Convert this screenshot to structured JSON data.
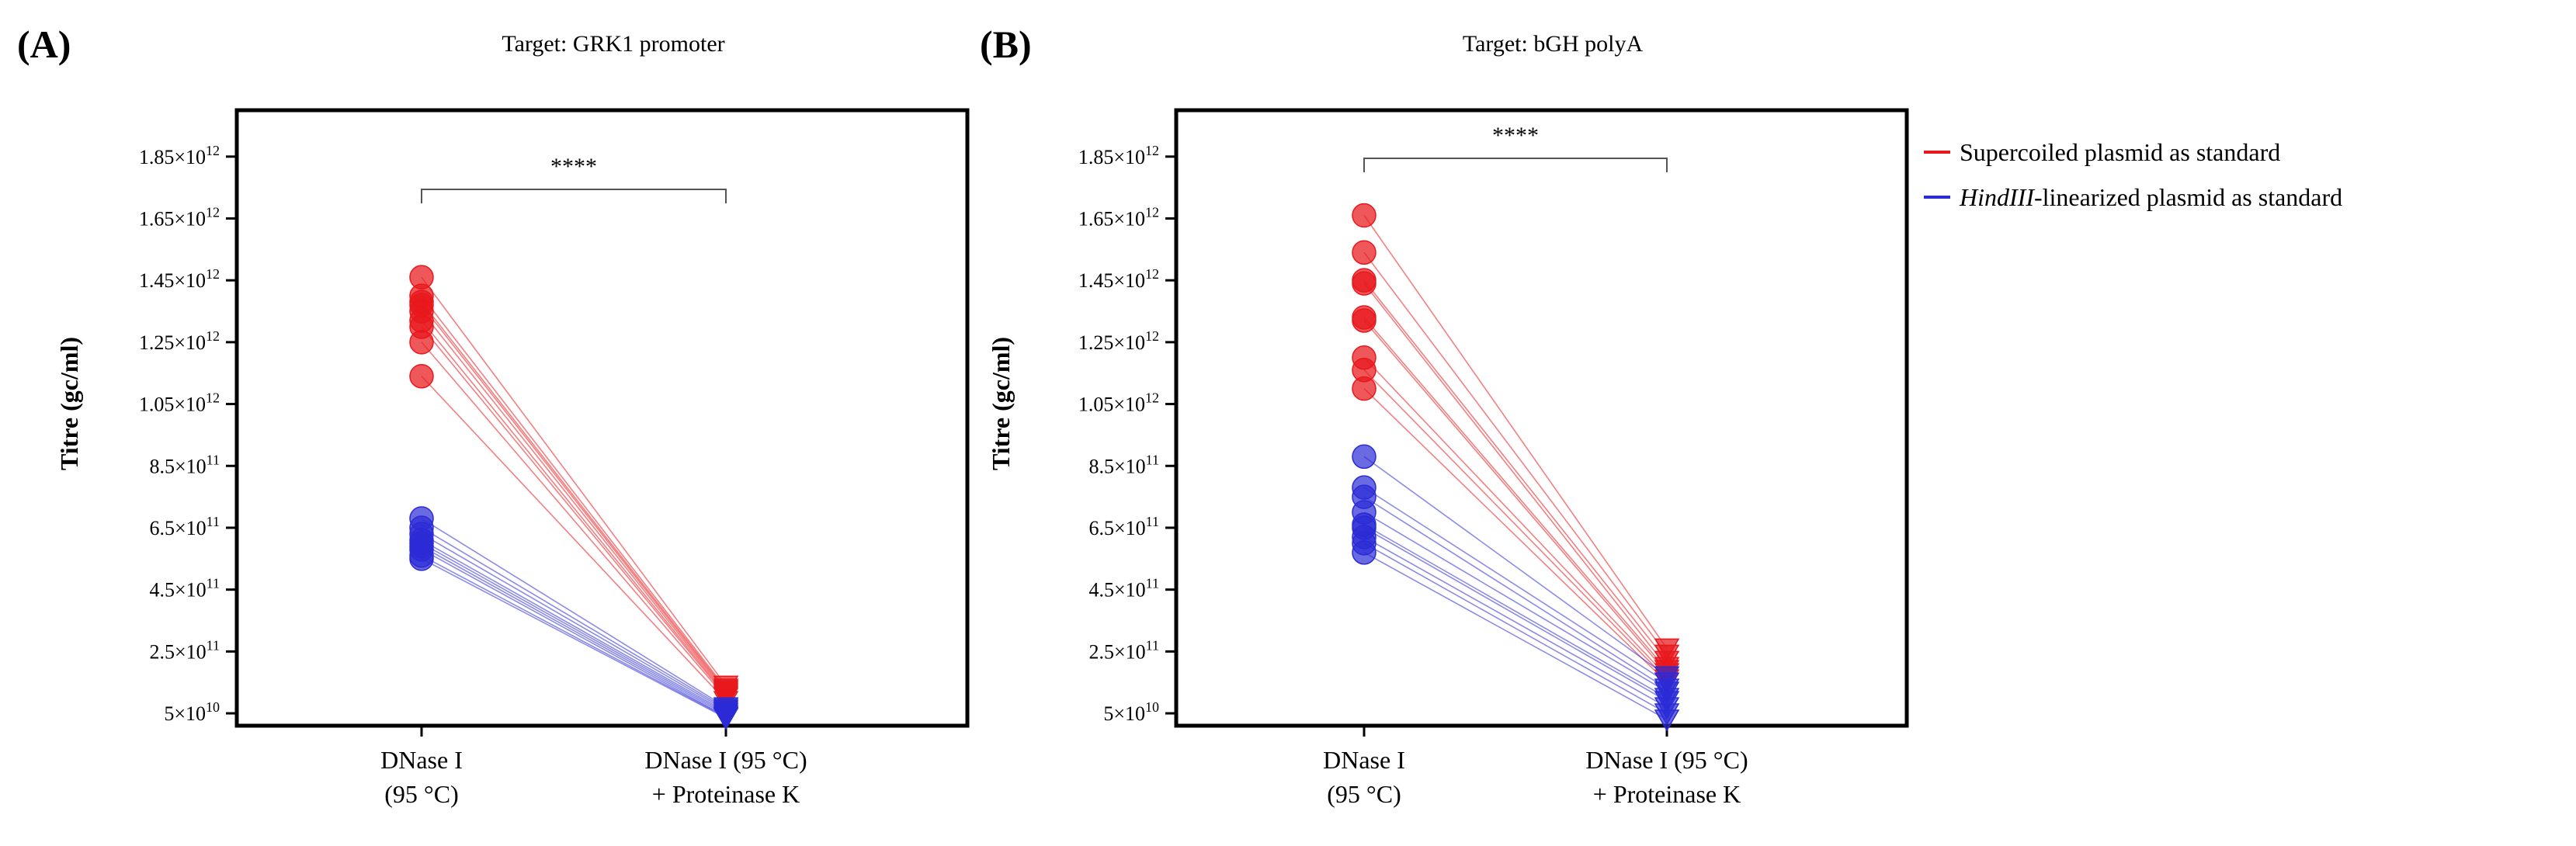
{
  "chart_data": [
    {
      "type": "scatter",
      "panel_label": "(A)",
      "title": "Target: GRK1 promoter",
      "ylabel": "Titre (gc/ml)",
      "y_ticks": [
        {
          "value": 50000000000.0,
          "label_mantissa": "5",
          "label_exp": "10"
        },
        {
          "value": 250000000000.0,
          "label_mantissa": "2.5",
          "label_exp": "11"
        },
        {
          "value": 450000000000.0,
          "label_mantissa": "4.5",
          "label_exp": "11"
        },
        {
          "value": 650000000000.0,
          "label_mantissa": "6.5",
          "label_exp": "11"
        },
        {
          "value": 850000000000.0,
          "label_mantissa": "8.5",
          "label_exp": "11"
        },
        {
          "value": 1050000000000.0,
          "label_mantissa": "1.05",
          "label_exp": "12"
        },
        {
          "value": 1250000000000.0,
          "label_mantissa": "1.25",
          "label_exp": "12"
        },
        {
          "value": 1450000000000.0,
          "label_mantissa": "1.45",
          "label_exp": "12"
        },
        {
          "value": 1650000000000.0,
          "label_mantissa": "1.65",
          "label_exp": "12"
        },
        {
          "value": 1850000000000.0,
          "label_mantissa": "1.85",
          "label_exp": "12"
        }
      ],
      "ylim": [
        10000000000.0,
        2000000000000.0
      ],
      "categories": [
        {
          "line1": "DNase I",
          "line2": "(95 °C)"
        },
        {
          "line1": "DNase I (95 °C)",
          "line2": "+ Proteinase K"
        }
      ],
      "significance": "****",
      "series": [
        {
          "name": "Supercoiled plasmid as standard",
          "color": "#e8181c",
          "pairs": [
            [
              1460000000000.0,
              140000000000.0
            ],
            [
              1400000000000.0,
              130000000000.0
            ],
            [
              1380000000000.0,
              125000000000.0
            ],
            [
              1370000000000.0,
              120000000000.0
            ],
            [
              1350000000000.0,
              115000000000.0
            ],
            [
              1320000000000.0,
              110000000000.0
            ],
            [
              1300000000000.0,
              105000000000.0
            ],
            [
              1250000000000.0,
              100000000000.0
            ],
            [
              1140000000000.0,
              90000000000.0
            ]
          ]
        },
        {
          "name": "HindIII-linearized plasmid as standard",
          "color": "#2b2bd6",
          "pairs": [
            [
              680000000000.0,
              70000000000.0
            ],
            [
              650000000000.0,
              65000000000.0
            ],
            [
              630000000000.0,
              60000000000.0
            ],
            [
              610000000000.0,
              55000000000.0
            ],
            [
              600000000000.0,
              50000000000.0
            ],
            [
              590000000000.0,
              45000000000.0
            ],
            [
              580000000000.0,
              40000000000.0
            ],
            [
              560000000000.0,
              38000000000.0
            ],
            [
              550000000000.0,
              35000000000.0
            ]
          ]
        }
      ]
    },
    {
      "type": "scatter",
      "panel_label": "(B)",
      "title": "Target: bGH polyA",
      "ylabel": "Titre (gc/ml)",
      "y_ticks": [
        {
          "value": 50000000000.0,
          "label_mantissa": "5",
          "label_exp": "10"
        },
        {
          "value": 250000000000.0,
          "label_mantissa": "2.5",
          "label_exp": "11"
        },
        {
          "value": 450000000000.0,
          "label_mantissa": "4.5",
          "label_exp": "11"
        },
        {
          "value": 650000000000.0,
          "label_mantissa": "6.5",
          "label_exp": "11"
        },
        {
          "value": 850000000000.0,
          "label_mantissa": "8.5",
          "label_exp": "11"
        },
        {
          "value": 1050000000000.0,
          "label_mantissa": "1.05",
          "label_exp": "12"
        },
        {
          "value": 1250000000000.0,
          "label_mantissa": "1.25",
          "label_exp": "12"
        },
        {
          "value": 1450000000000.0,
          "label_mantissa": "1.45",
          "label_exp": "12"
        },
        {
          "value": 1650000000000.0,
          "label_mantissa": "1.65",
          "label_exp": "12"
        },
        {
          "value": 1850000000000.0,
          "label_mantissa": "1.85",
          "label_exp": "12"
        }
      ],
      "ylim": [
        10000000000.0,
        2000000000000.0
      ],
      "categories": [
        {
          "line1": "DNase I",
          "line2": "(95 °C)"
        },
        {
          "line1": "DNase I (95 °C)",
          "line2": "+ Proteinase K"
        }
      ],
      "significance": "****",
      "series": [
        {
          "name": "Supercoiled plasmid as standard",
          "color": "#e8181c",
          "pairs": [
            [
              1660000000000.0,
              260000000000.0
            ],
            [
              1540000000000.0,
              240000000000.0
            ],
            [
              1450000000000.0,
              220000000000.0
            ],
            [
              1440000000000.0,
              200000000000.0
            ],
            [
              1330000000000.0,
              190000000000.0
            ],
            [
              1320000000000.0,
              180000000000.0
            ],
            [
              1200000000000.0,
              170000000000.0
            ],
            [
              1160000000000.0,
              160000000000.0
            ],
            [
              1100000000000.0,
              150000000000.0
            ]
          ]
        },
        {
          "name": "HindIII-linearized plasmid as standard",
          "color": "#2b2bd6",
          "pairs": [
            [
              880000000000.0,
              170000000000.0
            ],
            [
              780000000000.0,
              150000000000.0
            ],
            [
              750000000000.0,
              130000000000.0
            ],
            [
              700000000000.0,
              120000000000.0
            ],
            [
              660000000000.0,
              100000000000.0
            ],
            [
              650000000000.0,
              90000000000.0
            ],
            [
              620000000000.0,
              70000000000.0
            ],
            [
              600000000000.0,
              50000000000.0
            ],
            [
              570000000000.0,
              30000000000.0
            ]
          ]
        }
      ]
    }
  ],
  "legend": {
    "items": [
      {
        "label": "Supercoiled plasmid as standard",
        "color": "#e8181c"
      },
      {
        "label_italic": "HindIII",
        "label": "-linearized plasmid as standard",
        "color": "#2b2bd6"
      }
    ]
  }
}
